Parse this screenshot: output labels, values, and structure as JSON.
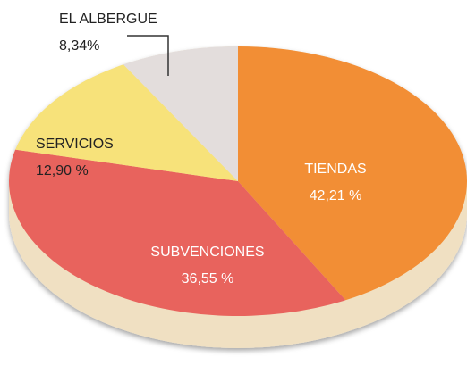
{
  "chart_data": {
    "type": "pie",
    "categories": [
      "TIENDAS",
      "SUBVENCIONES",
      "SERVICIOS",
      "EL ALBERGUE"
    ],
    "values": [
      42.21,
      36.55,
      12.9,
      8.34
    ],
    "value_labels": [
      "42,21 %",
      "36,55 %",
      "12,90 %",
      "8,34%"
    ],
    "colors": [
      "#f28e35",
      "#e8635d",
      "#f7e27a",
      "#e3dddc"
    ]
  }
}
